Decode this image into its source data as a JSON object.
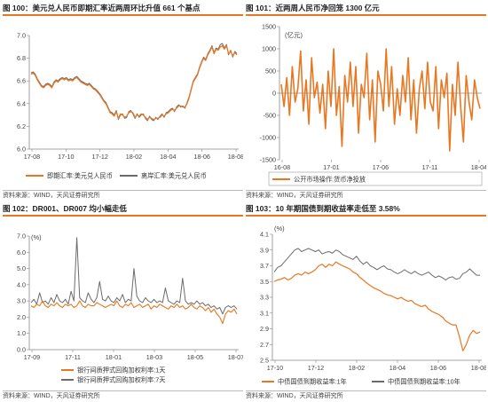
{
  "source_text": "资料来源：WIND，天风证券研究所",
  "colors": {
    "orange": "#e87722",
    "gray": "#6b6b6b",
    "title_rule": "#e87722"
  },
  "chart_data": [
    {
      "type": "line",
      "title": "图 100：美元兑人民币即期汇率近两周环比升值 661 个基点",
      "x_tick_labels": [
        "17-08",
        "17-10",
        "17-12",
        "18-02",
        "18-04",
        "18-06",
        "18-08"
      ],
      "ylim": [
        6.0,
        7.0
      ],
      "y_ticks": [
        6.0,
        6.2,
        6.4,
        6.6,
        6.8,
        7.0
      ],
      "y_tick_labels": [
        "6.0",
        "6.2",
        "6.4",
        "6.6",
        "6.8",
        "7.0"
      ],
      "legend_position": "bottom",
      "series": [
        {
          "name": "即期汇率:美元兑人民币",
          "color": "#e87722",
          "width": 1.3,
          "values": [
            6.66,
            6.67,
            6.65,
            6.61,
            6.58,
            6.55,
            6.54,
            6.56,
            6.57,
            6.56,
            6.54,
            6.58,
            6.6,
            6.59,
            6.61,
            6.62,
            6.61,
            6.62,
            6.6,
            6.61,
            6.6,
            6.62,
            6.63,
            6.61,
            6.59,
            6.58,
            6.57,
            6.56,
            6.57,
            6.55,
            6.53,
            6.52,
            6.5,
            6.48,
            6.45,
            6.42,
            6.4,
            6.36,
            6.32,
            6.31,
            6.29,
            6.33,
            6.27,
            6.31,
            6.3,
            6.28,
            6.29,
            6.32,
            6.33,
            6.32,
            6.28,
            6.3,
            6.29,
            6.31,
            6.3,
            6.28,
            6.26,
            6.28,
            6.27,
            6.26,
            6.27,
            6.27,
            6.28,
            6.3,
            6.29,
            6.31,
            6.32,
            6.34,
            6.35,
            6.34,
            6.36,
            6.38,
            6.38,
            6.37,
            6.37,
            6.4,
            6.45,
            6.52,
            6.59,
            6.62,
            6.65,
            6.71,
            6.76,
            6.8,
            6.78,
            6.83,
            6.86,
            6.9,
            6.84,
            6.88,
            6.87,
            6.9,
            6.91,
            6.88,
            6.91,
            6.84,
            6.86,
            6.82,
            6.85,
            6.83
          ]
        },
        {
          "name": "离岸汇率:美元兑人民币",
          "color": "#6b6b6b",
          "width": 1.0,
          "values": [
            6.67,
            6.68,
            6.66,
            6.62,
            6.59,
            6.56,
            6.55,
            6.57,
            6.58,
            6.57,
            6.55,
            6.59,
            6.61,
            6.6,
            6.62,
            6.63,
            6.62,
            6.63,
            6.61,
            6.62,
            6.61,
            6.63,
            6.64,
            6.62,
            6.6,
            6.59,
            6.58,
            6.57,
            6.58,
            6.56,
            6.54,
            6.53,
            6.51,
            6.49,
            6.46,
            6.43,
            6.41,
            6.37,
            6.33,
            6.32,
            6.3,
            6.34,
            6.26,
            6.3,
            6.31,
            6.27,
            6.28,
            6.33,
            6.34,
            6.31,
            6.27,
            6.31,
            6.28,
            6.3,
            6.31,
            6.27,
            6.25,
            6.29,
            6.26,
            6.25,
            6.28,
            6.26,
            6.29,
            6.31,
            6.28,
            6.32,
            6.33,
            6.35,
            6.36,
            6.33,
            6.37,
            6.39,
            6.37,
            6.38,
            6.36,
            6.41,
            6.46,
            6.53,
            6.6,
            6.63,
            6.66,
            6.72,
            6.77,
            6.81,
            6.79,
            6.84,
            6.87,
            6.91,
            6.85,
            6.89,
            6.88,
            6.92,
            6.93,
            6.89,
            6.92,
            6.83,
            6.87,
            6.81,
            6.86,
            6.84
          ]
        }
      ]
    },
    {
      "type": "line",
      "title": "图 101：近两周人民币净回笼 1300 亿元",
      "unit": "(亿元)",
      "x_tick_labels": [
        "16-08",
        "17-01",
        "17-06",
        "17-11",
        "18-04"
      ],
      "ylim": [
        -1500,
        1500
      ],
      "y_ticks": [
        -1500,
        -1000,
        -500,
        0,
        500,
        1000,
        1500
      ],
      "y_tick_labels": [
        "-1500",
        "-1000",
        "-500",
        "0",
        "500",
        "1000",
        "1500"
      ],
      "legend_position": "bottom",
      "series": [
        {
          "name": "公开市场操作:货币净投放",
          "color": "#e87722",
          "width": 1.6,
          "values": [
            200,
            -300,
            350,
            -500,
            600,
            -200,
            100,
            950,
            -400,
            300,
            -700,
            800,
            -100,
            250,
            -450,
            200,
            -800,
            500,
            -300,
            1000,
            -500,
            150,
            -1200,
            400,
            -200,
            700,
            -300,
            600,
            -900,
            200,
            -100,
            900,
            -600,
            300,
            -1100,
            500,
            200,
            -400,
            1000,
            -300,
            600,
            -700,
            100,
            -500,
            400,
            -200,
            800,
            -600,
            300,
            -900,
            100,
            500,
            -350,
            700,
            -200,
            -400,
            600,
            -800,
            300,
            -100,
            450,
            -1300,
            200,
            -500,
            700,
            -300,
            -1100,
            400,
            -200,
            -600,
            300,
            -100,
            -350
          ]
        }
      ]
    },
    {
      "type": "line",
      "title": "图 102：DR001、DR007 均小幅走低",
      "unit": "(%)",
      "x_tick_labels": [
        "17-09",
        "17-11",
        "18-01",
        "18-03",
        "18-05",
        "18-07"
      ],
      "ylim": [
        0,
        7.0
      ],
      "y_ticks": [
        0,
        1.0,
        2.0,
        3.0,
        4.0,
        5.0,
        6.0,
        7.0
      ],
      "y_tick_labels": [
        "0.0",
        "1.0",
        "2.0",
        "3.0",
        "4.0",
        "5.0",
        "6.0",
        "7.0"
      ],
      "legend_position": "bottom",
      "series": [
        {
          "name": "银行间质押式回购加权利率:1天",
          "color": "#e87722",
          "width": 1.1,
          "values": [
            2.7,
            2.6,
            2.8,
            2.7,
            3.0,
            2.7,
            2.6,
            2.8,
            2.7,
            2.9,
            2.7,
            2.6,
            2.8,
            2.7,
            2.8,
            2.6,
            2.7,
            3.0,
            2.7,
            2.6,
            2.8,
            2.7,
            2.7,
            2.9,
            2.8,
            2.7,
            2.6,
            2.7,
            2.8,
            2.7,
            3.0,
            2.7,
            2.6,
            2.8,
            2.7,
            2.9,
            2.6,
            2.7,
            2.8,
            2.6,
            2.7,
            2.8,
            2.5,
            2.7,
            2.6,
            2.8,
            2.7,
            2.6,
            2.5,
            2.7,
            2.6,
            2.8,
            2.6,
            2.7,
            2.5,
            2.6,
            2.8,
            2.6,
            2.5,
            2.7,
            2.6,
            2.4,
            2.6,
            2.3,
            2.5,
            2.2,
            2.0,
            1.6,
            2.2,
            2.4,
            2.3,
            2.5,
            2.2
          ]
        },
        {
          "name": "银行间质押式回购加权利率:7天",
          "color": "#6b6b6b",
          "width": 1.0,
          "values": [
            2.9,
            3.1,
            2.8,
            3.5,
            2.9,
            3.0,
            2.8,
            3.2,
            2.9,
            3.4,
            3.0,
            2.9,
            3.1,
            2.8,
            3.6,
            3.0,
            6.9,
            3.2,
            3.0,
            2.9,
            3.5,
            3.1,
            2.9,
            3.2,
            4.2,
            3.1,
            3.0,
            3.3,
            3.0,
            2.9,
            3.2,
            3.0,
            3.4,
            2.9,
            3.1,
            3.0,
            5.0,
            3.3,
            3.0,
            2.9,
            3.2,
            3.0,
            2.9,
            3.1,
            2.9,
            3.0,
            2.9,
            3.8,
            3.0,
            2.9,
            2.8,
            3.0,
            2.9,
            4.4,
            3.0,
            2.8,
            2.9,
            2.8,
            3.0,
            2.8,
            2.9,
            2.7,
            2.8,
            2.6,
            2.7,
            2.5,
            2.6,
            2.2,
            2.6,
            2.7,
            2.6,
            2.7,
            2.5
          ]
        }
      ]
    },
    {
      "type": "line",
      "title": "图 103：10 年期国债到期收益率走低至 3.58%",
      "unit": "(%)",
      "x_tick_labels": [
        "17-10",
        "17-12",
        "18-02",
        "18-04",
        "18-06",
        "18-08"
      ],
      "ylim": [
        2.5,
        4.1
      ],
      "y_ticks": [
        2.5,
        2.7,
        2.9,
        3.1,
        3.3,
        3.5,
        3.7,
        3.9,
        4.1
      ],
      "y_tick_labels": [
        "2.5",
        "2.7",
        "2.9",
        "3.1",
        "3.3",
        "3.5",
        "3.7",
        "3.9",
        "4.1"
      ],
      "legend_position": "bottom",
      "series": [
        {
          "name": "中债国债到期收益率:1年",
          "color": "#e87722",
          "width": 1.2,
          "values": [
            3.5,
            3.52,
            3.53,
            3.55,
            3.52,
            3.54,
            3.58,
            3.6,
            3.58,
            3.62,
            3.6,
            3.62,
            3.65,
            3.7,
            3.72,
            3.68,
            3.72,
            3.7,
            3.75,
            3.72,
            3.7,
            3.68,
            3.66,
            3.62,
            3.6,
            3.55,
            3.52,
            3.48,
            3.45,
            3.42,
            3.4,
            3.38,
            3.35,
            3.33,
            3.32,
            3.3,
            3.28,
            3.3,
            3.27,
            3.25,
            3.26,
            3.22,
            3.2,
            3.18,
            3.2,
            3.15,
            3.12,
            3.1,
            3.08,
            3.05,
            3.0,
            2.97,
            2.95,
            2.95,
            2.8,
            2.62,
            2.7,
            2.82,
            2.88,
            2.84,
            2.86
          ]
        },
        {
          "name": "中债国债到期收益率:10年",
          "color": "#6b6b6b",
          "width": 1.0,
          "values": [
            3.62,
            3.68,
            3.7,
            3.75,
            3.8,
            3.85,
            3.9,
            3.92,
            3.88,
            3.9,
            3.92,
            3.9,
            3.88,
            3.9,
            3.85,
            3.87,
            3.88,
            3.86,
            3.9,
            3.88,
            3.84,
            3.82,
            3.8,
            3.78,
            3.82,
            3.76,
            3.72,
            3.75,
            3.7,
            3.68,
            3.65,
            3.68,
            3.7,
            3.66,
            3.65,
            3.62,
            3.6,
            3.62,
            3.65,
            3.62,
            3.6,
            3.63,
            3.6,
            3.58,
            3.6,
            3.62,
            3.58,
            3.55,
            3.57,
            3.55,
            3.52,
            3.55,
            3.56,
            3.53,
            3.54,
            3.6,
            3.62,
            3.66,
            3.62,
            3.58,
            3.58
          ]
        }
      ]
    }
  ]
}
